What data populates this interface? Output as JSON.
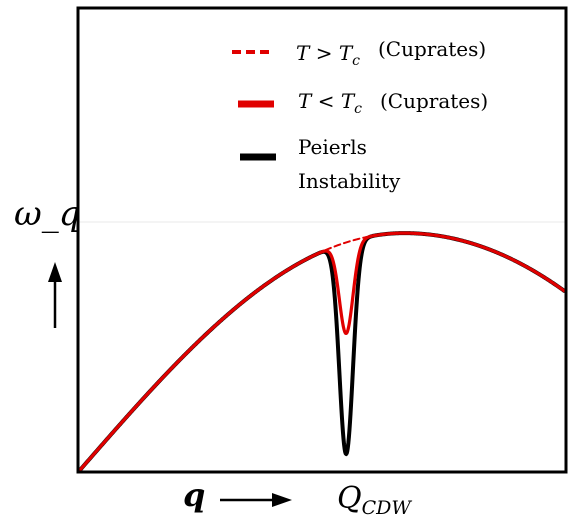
{
  "chart_data": {
    "type": "line",
    "xlabel": "q",
    "ylabel": "ω_q",
    "x_tick_label": "Q_CDW",
    "x_tick_value": 0.55,
    "xlim": [
      0,
      1
    ],
    "ylim": [
      0,
      1
    ],
    "grid": false,
    "legend_position": "top-right",
    "colors": {
      "red": "#e00000",
      "black": "#000000"
    },
    "series": [
      {
        "name": "T > T_c  (Cuprates)",
        "legend_main": "T > T",
        "legend_sub": "c",
        "legend_tail": "(Cuprates)",
        "style": "dashed",
        "color": "#e00000",
        "dip_depth": 0.0,
        "bridge": true
      },
      {
        "name": "T < T_c  (Cuprates)",
        "legend_main": "T < T",
        "legend_sub": "c",
        "legend_tail": "(Cuprates)",
        "style": "solid",
        "color": "#e00000",
        "dip_depth": 0.4
      },
      {
        "name": "Peierls Instability",
        "legend_line1": "Peierls",
        "legend_line2": "Instability",
        "style": "solid",
        "color": "#000000",
        "dip_depth": 0.93
      }
    ]
  }
}
